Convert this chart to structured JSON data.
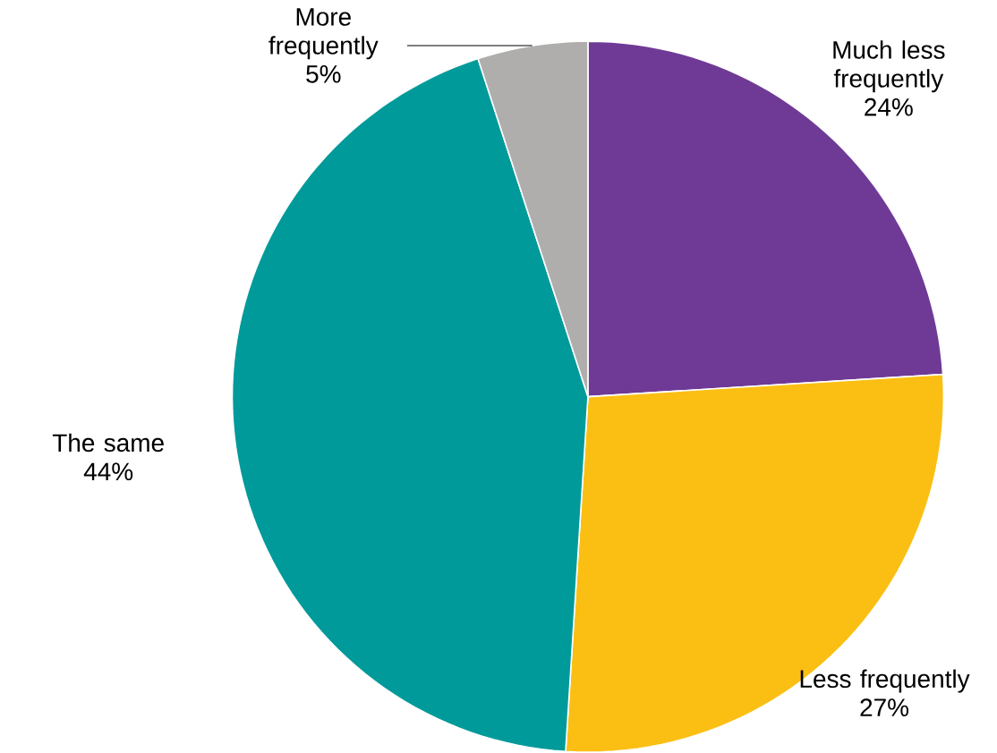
{
  "chart_data": {
    "type": "pie",
    "categories": [
      "Much less frequently",
      "Less frequently",
      "The same",
      "More frequently"
    ],
    "values": [
      24,
      27,
      44,
      5
    ],
    "value_labels": [
      "24%",
      "27%",
      "44%",
      "5%"
    ],
    "colors": [
      "#6f3a96",
      "#fbbf14",
      "#019a9a",
      "#b0aead"
    ]
  }
}
